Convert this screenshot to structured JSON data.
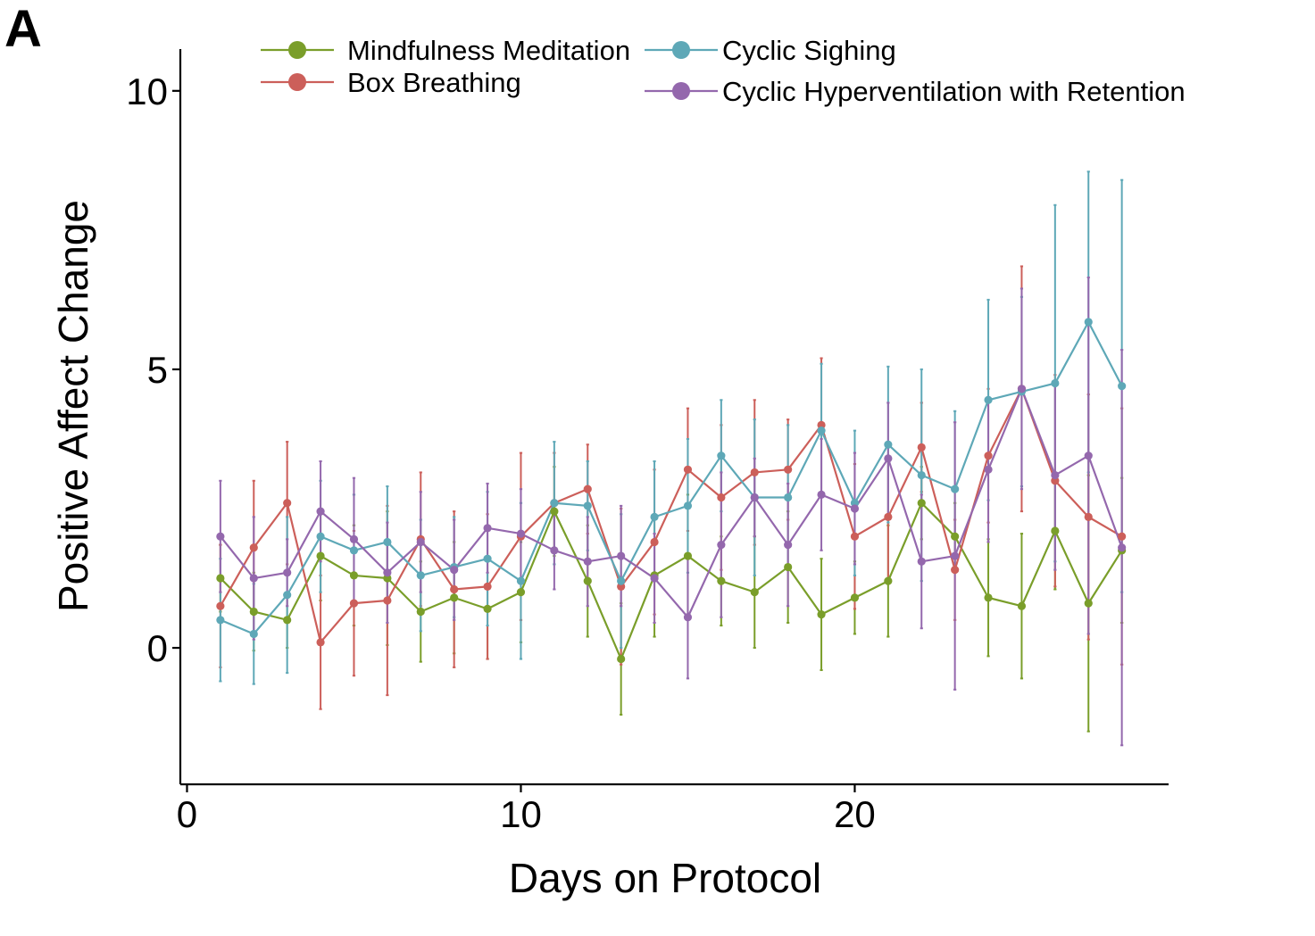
{
  "panel_label": "A",
  "chart_data": {
    "type": "line",
    "xlabel": "Days on Protocol",
    "ylabel": "Positive Affect Change",
    "xlim": [
      -0.2,
      29.4
    ],
    "ylim": [
      -2.45,
      10.75
    ],
    "xticks": [
      0,
      10,
      20
    ],
    "yticks": [
      0,
      5,
      10
    ],
    "xtick_labels": [
      "0",
      "10",
      "20"
    ],
    "ytick_labels": [
      "0",
      "5",
      "10"
    ],
    "grid": false,
    "legend_position": "top",
    "error_bars": true,
    "x": [
      1,
      2,
      3,
      4,
      5,
      6,
      7,
      8,
      9,
      10,
      11,
      12,
      13,
      14,
      15,
      16,
      17,
      18,
      19,
      20,
      21,
      22,
      23,
      24,
      25,
      26,
      27,
      28
    ],
    "series": [
      {
        "name": "Mindfulness Meditation",
        "color": "#7a9e2a",
        "values": [
          1.25,
          0.65,
          0.5,
          1.65,
          1.3,
          1.25,
          0.65,
          0.9,
          0.7,
          1.0,
          2.45,
          1.2,
          -0.2,
          1.3,
          1.65,
          1.2,
          1.0,
          1.45,
          0.6,
          0.9,
          1.2,
          2.6,
          2.0,
          0.9,
          0.75,
          2.1,
          0.8,
          1.75
        ],
        "err": [
          0.6,
          0.7,
          0.5,
          0.8,
          0.9,
          1.2,
          0.9,
          1.0,
          0.9,
          0.9,
          0.8,
          1.0,
          1.0,
          1.1,
          1.1,
          0.8,
          1.0,
          1.0,
          1.0,
          0.65,
          1.0,
          0.65,
          0.6,
          1.05,
          1.3,
          1.05,
          2.3,
          1.3
        ]
      },
      {
        "name": "Box Breathing",
        "color": "#cc5f5a",
        "values": [
          0.75,
          1.8,
          2.6,
          0.1,
          0.8,
          0.85,
          1.95,
          1.05,
          1.1,
          2.0,
          2.6,
          2.85,
          1.1,
          1.9,
          3.2,
          2.7,
          3.15,
          3.2,
          4.0,
          2.0,
          2.35,
          3.6,
          1.4,
          3.45,
          4.65,
          3.0,
          2.35,
          2.0
        ]
      },
      {
        "name": "Cyclic Sighing",
        "color": "#5ea8b7",
        "values": [
          0.5,
          0.25,
          0.95,
          2.0,
          1.75,
          1.9,
          1.3,
          1.45,
          1.6,
          1.2,
          2.6,
          2.55,
          1.2,
          2.35,
          2.55,
          3.45,
          2.7,
          2.7,
          3.9,
          2.6,
          3.65,
          3.1,
          2.85,
          4.45,
          4.6,
          4.75,
          5.85,
          4.7
        ]
      },
      {
        "name": "Cyclic Hyperventilation with Retention",
        "color": "#9468ad",
        "values": [
          2.0,
          1.25,
          1.35,
          2.45,
          1.95,
          1.35,
          1.9,
          1.4,
          2.15,
          2.05,
          1.75,
          1.55,
          1.65,
          1.25,
          0.55,
          1.85,
          2.7,
          1.85,
          2.75,
          2.5,
          3.4,
          1.55,
          1.65,
          3.2,
          4.65,
          3.1,
          3.45,
          1.8
        ]
      }
    ],
    "extra_error_bars": {
      "Box Breathing": [
        1.1,
        1.2,
        1.1,
        1.2,
        1.3,
        1.7,
        1.2,
        1.4,
        1.3,
        1.5,
        0.9,
        0.8,
        1.4,
        1.3,
        1.1,
        1.3,
        1.3,
        0.9,
        1.2,
        1.3,
        1.1,
        0.8,
        0.9,
        1.2,
        2.2,
        1.9,
        2.2,
        2.3
      ],
      "Cyclic Sighing": [
        1.1,
        0.9,
        1.4,
        1.0,
        1.0,
        1.0,
        1.0,
        0.9,
        1.2,
        1.4,
        1.1,
        0.8,
        1.2,
        1.0,
        1.2,
        1.0,
        1.4,
        1.3,
        1.2,
        1.3,
        1.4,
        1.9,
        1.4,
        1.8,
        1.7,
        3.2,
        2.7,
        3.7
      ],
      "Cyclic Hyperventilation with Retention": [
        1.0,
        1.1,
        0.6,
        0.9,
        1.1,
        0.9,
        0.9,
        0.9,
        0.8,
        0.8,
        0.7,
        0.8,
        0.9,
        0.8,
        1.1,
        1.3,
        0.7,
        1.1,
        1.0,
        1.0,
        1.0,
        1.2,
        2.4,
        1.3,
        1.8,
        1.7,
        3.2,
        3.55
      ]
    },
    "legend": [
      {
        "label": "Mindfulness Meditation",
        "color": "#7a9e2a"
      },
      {
        "label": "Box Breathing",
        "color": "#cc5f5a"
      },
      {
        "label": "Cyclic Sighing",
        "color": "#5ea8b7"
      },
      {
        "label": "Cyclic Hyperventilation with Retention",
        "color": "#9468ad"
      }
    ]
  }
}
